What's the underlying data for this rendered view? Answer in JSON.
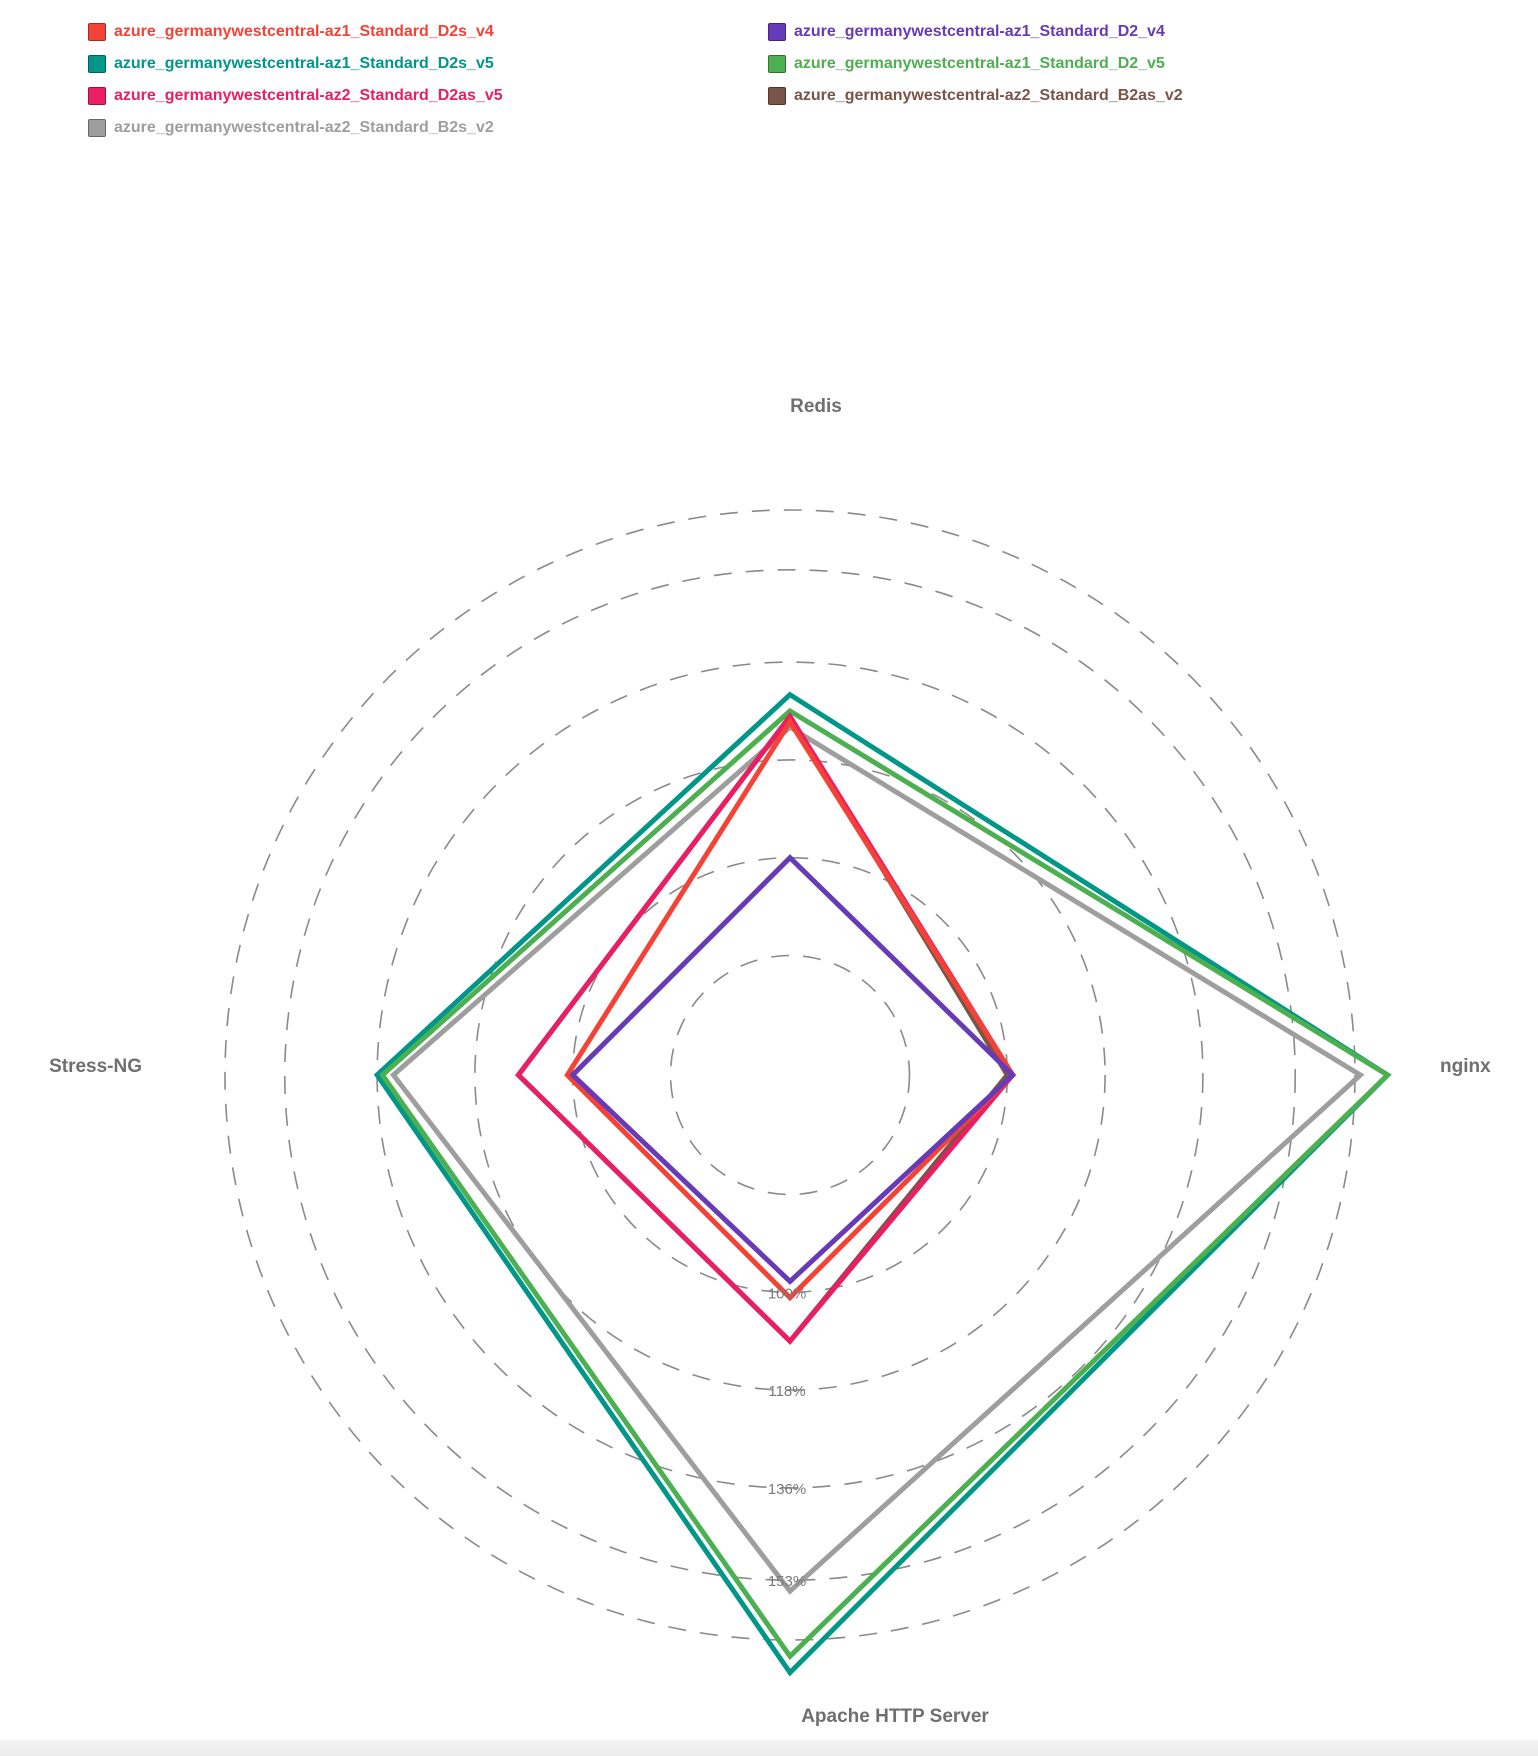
{
  "chart_data": {
    "type": "radar",
    "axes": [
      "Redis",
      "nginx",
      "Apache HTTP Server",
      "Stress-NG"
    ],
    "ticks": [
      "100%",
      "118%",
      "136%",
      "153%"
    ],
    "tick_values": [
      100,
      118,
      136,
      153
    ],
    "rmin": 60,
    "rmax": 164,
    "grid": "dashed-circles",
    "legend_position": "top",
    "series": [
      {
        "name": "azure_germanywestcentral-az1_Standard_D2s_v4",
        "color": "#f44336",
        "values": [
          125,
          101,
          101,
          101
        ]
      },
      {
        "name": "azure_germanywestcentral-az1_Standard_D2_v4",
        "color": "#673ab7",
        "values": [
          100,
          101,
          98,
          100
        ]
      },
      {
        "name": "azure_germanywestcentral-az1_Standard_D2s_v5",
        "color": "#009688",
        "values": [
          130,
          170,
          170,
          136
        ]
      },
      {
        "name": "azure_germanywestcentral-az1_Standard_D2_v5",
        "color": "#4caf50",
        "values": [
          127,
          170,
          167,
          135
        ]
      },
      {
        "name": "azure_germanywestcentral-az2_Standard_D2as_v5",
        "color": "#e91e63",
        "values": [
          126,
          101,
          109,
          110
        ]
      },
      {
        "name": "azure_germanywestcentral-az2_Standard_B2as_v2",
        "color": "#795548",
        "values": [
          126,
          100,
          109,
          110
        ]
      },
      {
        "name": "azure_germanywestcentral-az2_Standard_B2s_v2",
        "color": "#9e9e9e",
        "values": [
          124,
          165,
          155,
          133
        ]
      }
    ]
  }
}
